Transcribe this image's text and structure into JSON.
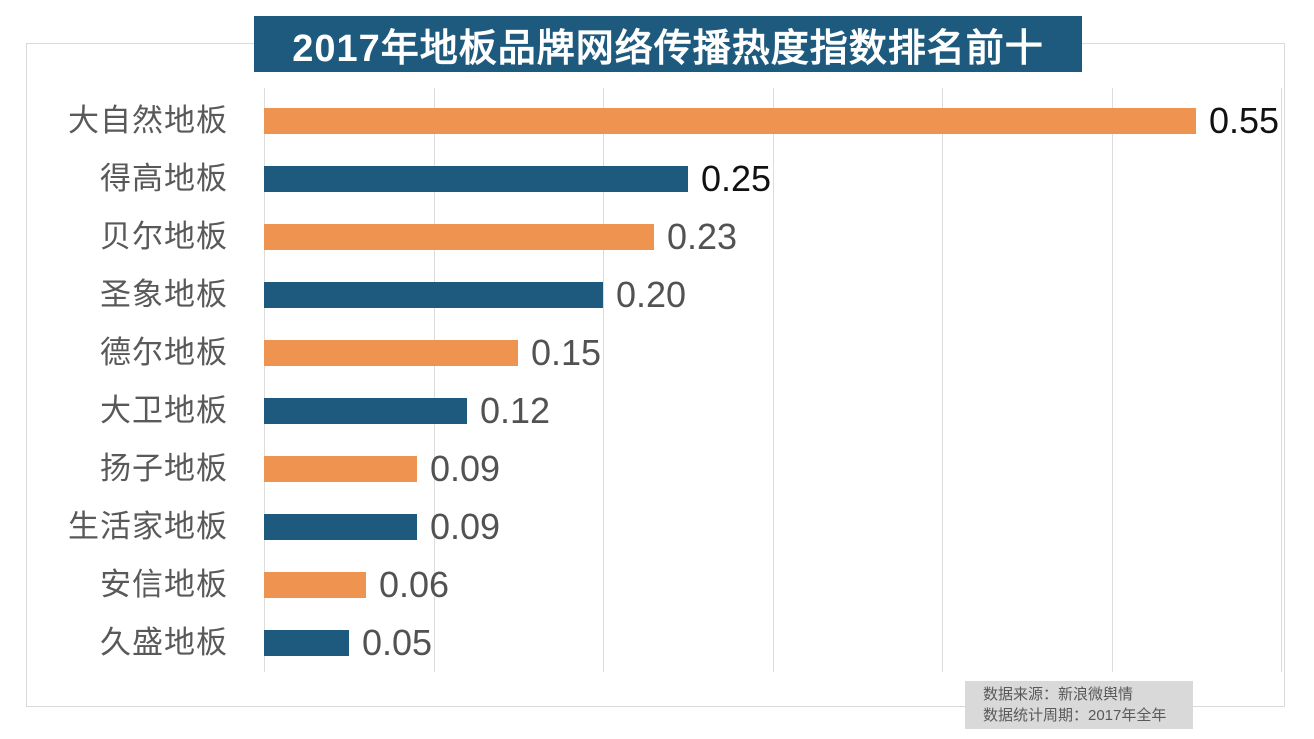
{
  "title": "2017年地板品牌网络传播热度指数排名前十",
  "footer": {
    "source": "数据来源：新浪微舆情",
    "period": "数据统计周期：2017年全年"
  },
  "colors": {
    "banner_bg": "#1e5a7d",
    "banner_text": "#ffffff",
    "bar_orange": "#ef9350",
    "bar_blue": "#1e5a7d",
    "grid_line": "#dcdcdc",
    "frame_border": "#d9d9d9",
    "category_label": "#595959",
    "value_label_emphasis": "#111111",
    "value_label_normal": "#525252",
    "footer_bg": "#d9d9d9",
    "footer_text": "#595959"
  },
  "chart_data": {
    "type": "bar",
    "orientation": "horizontal",
    "title": "2017年地板品牌网络传播热度指数排名前十",
    "categories": [
      "大自然地板",
      "得高地板",
      "贝尔地板",
      "圣象地板",
      "德尔地板",
      "大卫地板",
      "扬子地板",
      "生活家地板",
      "安信地板",
      "久盛地板"
    ],
    "values": [
      0.55,
      0.25,
      0.23,
      0.2,
      0.15,
      0.12,
      0.09,
      0.09,
      0.06,
      0.05
    ],
    "value_labels": [
      "0.55",
      "0.25",
      "0.23",
      "0.20",
      "0.15",
      "0.12",
      "0.09",
      "0.09",
      "0.06",
      "0.05"
    ],
    "bar_colors_hex": [
      "#ef9350",
      "#1e5a7d"
    ],
    "emphasized_value_indices": [
      0,
      1
    ],
    "xlim": [
      0,
      0.6
    ],
    "grid_interval": 0.1,
    "grid": true,
    "legend": false,
    "source_note": "数据来源：新浪微舆情",
    "period_note": "数据统计周期：2017年全年"
  }
}
